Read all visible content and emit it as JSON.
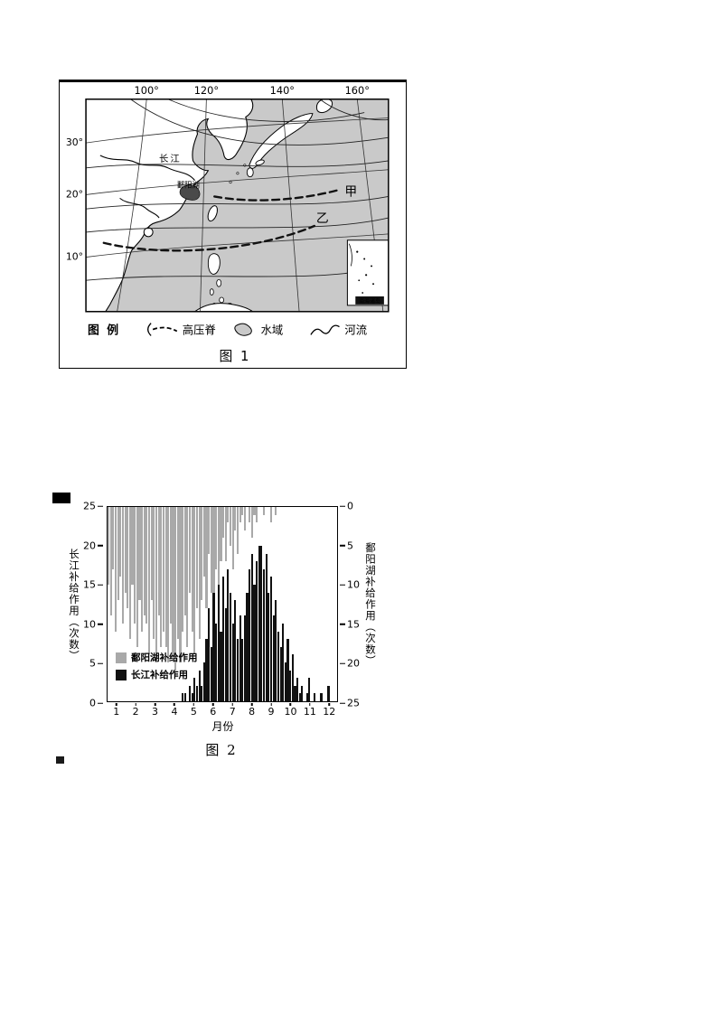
{
  "figure1": {
    "caption": "图 1",
    "lon_ticks": [
      "100°",
      "120°",
      "140°",
      "160°"
    ],
    "lat_ticks": [
      "30°",
      "20°",
      "10°"
    ],
    "map_labels": {
      "yangtze": "长江",
      "poyang": "鄱阳湖",
      "jia": "甲",
      "yi": "乙",
      "inset": "南海诸岛"
    },
    "legend": {
      "title": "图 例",
      "items": [
        {
          "symbol": "high-pressure-ridge",
          "label": "高压脊"
        },
        {
          "symbol": "water-area",
          "label": "水域"
        },
        {
          "symbol": "river",
          "label": "河流"
        }
      ]
    }
  },
  "figure2": {
    "caption": "图 2",
    "left_axis": {
      "label": "长江补给作用（次数）",
      "ticks": [
        "25",
        "20",
        "15",
        "10",
        "5",
        "0"
      ]
    },
    "right_axis": {
      "label": "鄱阳湖补给作用（次数）",
      "ticks": [
        "0",
        "5",
        "10",
        "15",
        "20",
        "25"
      ]
    },
    "x_axis": {
      "label": "月份",
      "ticks": [
        "1",
        "2",
        "3",
        "4",
        "5",
        "6",
        "7",
        "8",
        "9",
        "10",
        "11",
        "12"
      ]
    },
    "legend": [
      {
        "label": "鄱阳湖补给作用",
        "color": "#a9a9a9"
      },
      {
        "label": "长江补给作用",
        "color": "#111111"
      }
    ]
  },
  "chart_data": {
    "type": "bar",
    "title": "图 2",
    "xlabel": "月份",
    "categories_months": [
      1,
      2,
      3,
      4,
      5,
      6,
      7,
      8,
      9,
      10,
      11,
      12
    ],
    "bars_per_month": 8,
    "left_axis_label": "长江补给作用（次数）",
    "right_axis_label": "鄱阳湖补给作用（次数）",
    "ylim_left": [
      0,
      25
    ],
    "ylim_right_inverted_from_top": [
      0,
      25
    ],
    "legend_position": "inside lower-left",
    "grid": false,
    "series": [
      {
        "name": "鄱阳湖补给作用",
        "axis": "right",
        "anchor": "top",
        "color": "#a9a9a9",
        "values": [
          10,
          14,
          8,
          16,
          12,
          9,
          15,
          11,
          13,
          17,
          10,
          15,
          18,
          12,
          16,
          14,
          15,
          19,
          12,
          17,
          20,
          14,
          18,
          16,
          18,
          20,
          15,
          19,
          21,
          17,
          20,
          16,
          14,
          18,
          11,
          16,
          19,
          13,
          17,
          12,
          9,
          13,
          6,
          11,
          14,
          8,
          12,
          7,
          4,
          7,
          2,
          5,
          8,
          3,
          6,
          2,
          1,
          3,
          0,
          2,
          4,
          1,
          2,
          0,
          0,
          1,
          0,
          0,
          2,
          0,
          1,
          0,
          0,
          0,
          0,
          0,
          0,
          0,
          0,
          0,
          0,
          0,
          0,
          0,
          0,
          0,
          0,
          0,
          0,
          0,
          0,
          0,
          0,
          0,
          0,
          0
        ]
      },
      {
        "name": "长江补给作用",
        "axis": "left",
        "anchor": "bottom",
        "color": "#111111",
        "values": [
          0,
          0,
          0,
          0,
          0,
          0,
          0,
          0,
          0,
          0,
          0,
          0,
          0,
          0,
          0,
          0,
          0,
          0,
          0,
          0,
          0,
          0,
          0,
          0,
          0,
          0,
          0,
          0,
          0,
          0,
          0,
          1,
          1,
          0,
          2,
          1,
          3,
          2,
          4,
          2,
          5,
          8,
          12,
          7,
          14,
          10,
          15,
          9,
          16,
          12,
          17,
          14,
          10,
          13,
          8,
          11,
          8,
          11,
          14,
          17,
          19,
          15,
          18,
          20,
          20,
          17,
          19,
          14,
          16,
          11,
          13,
          9,
          7,
          10,
          5,
          8,
          4,
          6,
          2,
          3,
          1,
          2,
          0,
          1,
          3,
          0,
          1,
          0,
          0,
          1,
          0,
          0,
          2,
          0,
          0,
          0
        ]
      }
    ]
  }
}
